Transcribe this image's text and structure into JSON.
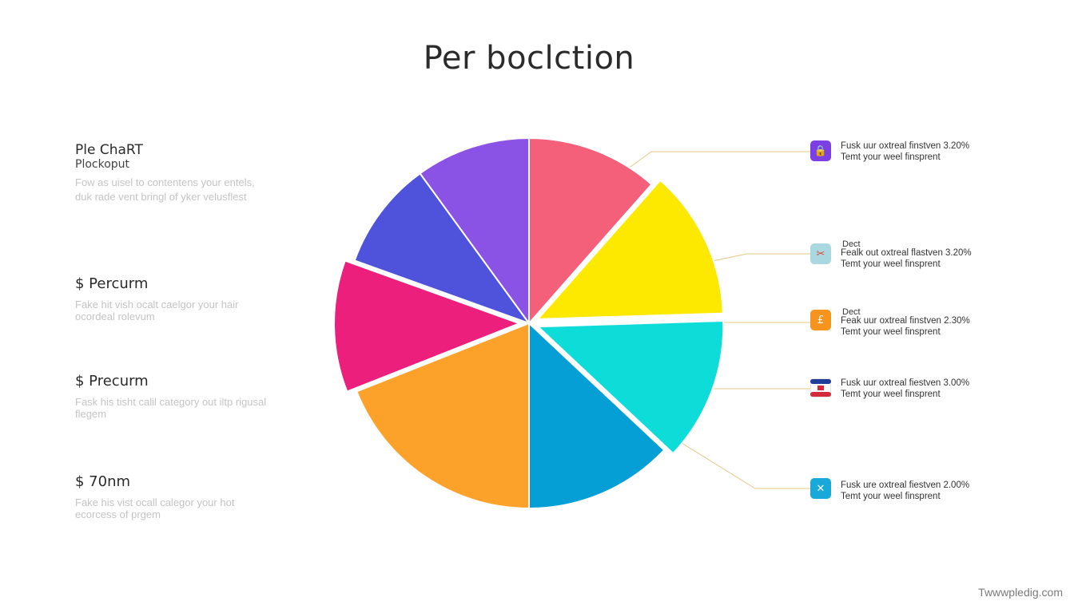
{
  "title": "Per boclction",
  "left_panel": {
    "heading": "Ple ChaRT",
    "subheading": "Plockoput",
    "body": "Fow as uisel to contentens your entels, duk rade vent bringl of yker velusflest",
    "items": [
      {
        "value": "$ Percurm",
        "desc": "Fake hit vish ocalt caelgor your hair ocordeal rolevum"
      },
      {
        "value": "$ Precurm",
        "desc": "Fask his tisht calil category out iltp rigusal flegem"
      },
      {
        "value": "$ 70nm",
        "desc": "Fake his vist ocall calegor your hot ecorcess of prgem"
      }
    ]
  },
  "legend": [
    {
      "tag": "",
      "line1": "Fusk uur oxtreal finstven 3.20%",
      "line2": "Temt your weel finsprent",
      "icon": "lock-icon",
      "icon_glyph": "🔒",
      "color": "#7b3fe4"
    },
    {
      "tag": "Dect",
      "line1": "Fealk out oxtreal flastven 3.20%",
      "line2": "Temt your weel finsprent",
      "icon": "scissors-icon",
      "icon_glyph": "✂",
      "color": "#a9d8e0"
    },
    {
      "tag": "Dect",
      "line1": "Feak uur oxtreal finstven 2.30%",
      "line2": "Temt your weel finsprent",
      "icon": "coin-icon",
      "icon_glyph": "£",
      "color": "#f7941d"
    },
    {
      "tag": "",
      "line1": "Fusk uur oxtreal fiestven 3.00%",
      "line2": "Temt your weel finsprent",
      "icon": "flag-icon",
      "icon_glyph": "",
      "color": "#ffffff"
    },
    {
      "tag": "",
      "line1": "Fusk ure oxtreal fiestven 2.00%",
      "line2": "Temt your weel finsprent",
      "icon": "tools-icon",
      "icon_glyph": "✕",
      "color": "#18a9d8"
    }
  ],
  "watermark": "Twwwpledig.com",
  "chart_data": {
    "type": "pie",
    "title": "Per boclction",
    "slices": [
      {
        "value": 11.5,
        "color": "#f45f7a",
        "exploded": false
      },
      {
        "value": 13.0,
        "color": "#fde800",
        "exploded": true
      },
      {
        "value": 12.5,
        "color": "#0edcd8",
        "exploded": true
      },
      {
        "value": 13.0,
        "color": "#069fd5",
        "exploded": false
      },
      {
        "value": 19.0,
        "color": "#fca22b",
        "exploded": false
      },
      {
        "value": 11.5,
        "color": "#ec1f7c",
        "exploded": true
      },
      {
        "value": 9.5,
        "color": "#4f52da",
        "exploded": false
      },
      {
        "value": 10.0,
        "color": "#8b52e6",
        "exploded": false
      }
    ]
  }
}
